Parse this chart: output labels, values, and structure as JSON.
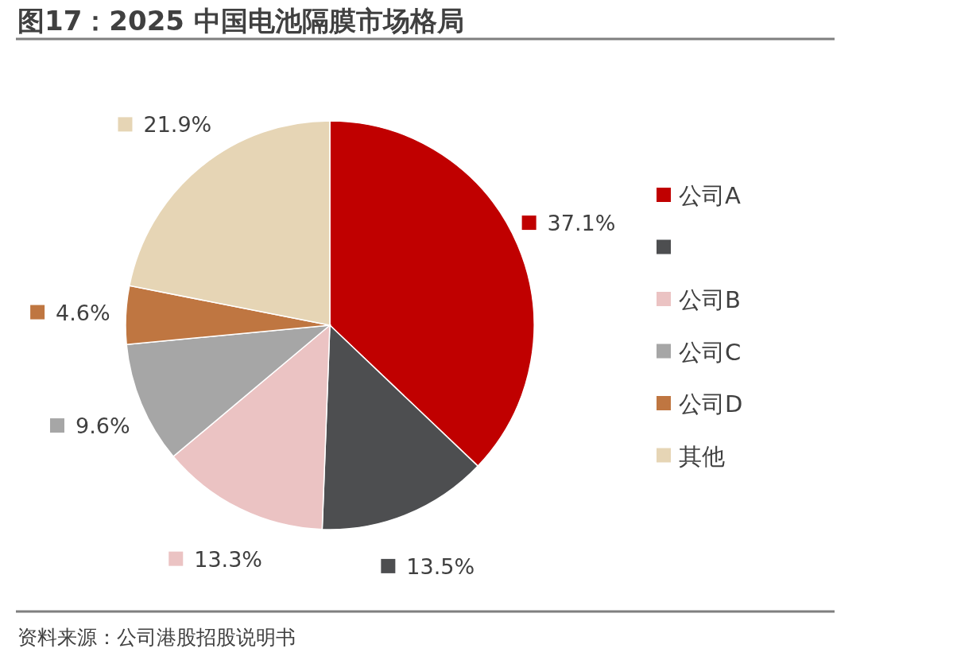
{
  "chart_data": {
    "type": "pie",
    "title": "图17：2025 中国电池隔膜市场格局",
    "categories": [
      "公司A",
      null,
      "公司B",
      "公司C",
      "公司D",
      "其他"
    ],
    "values": [
      37.1,
      13.5,
      13.3,
      9.6,
      4.6,
      21.9
    ],
    "colors": [
      "#c00000",
      "#4d4e50",
      "#ebc3c3",
      "#a6a6a6",
      "#bf7641",
      "#e6d5b5"
    ],
    "value_labels": [
      "37.1%",
      "13.5%",
      "13.3%",
      "9.6%",
      "4.6%",
      "21.9%"
    ],
    "legend": "right",
    "annotations": [
      "资料来源：公司港股招股说明书"
    ]
  }
}
